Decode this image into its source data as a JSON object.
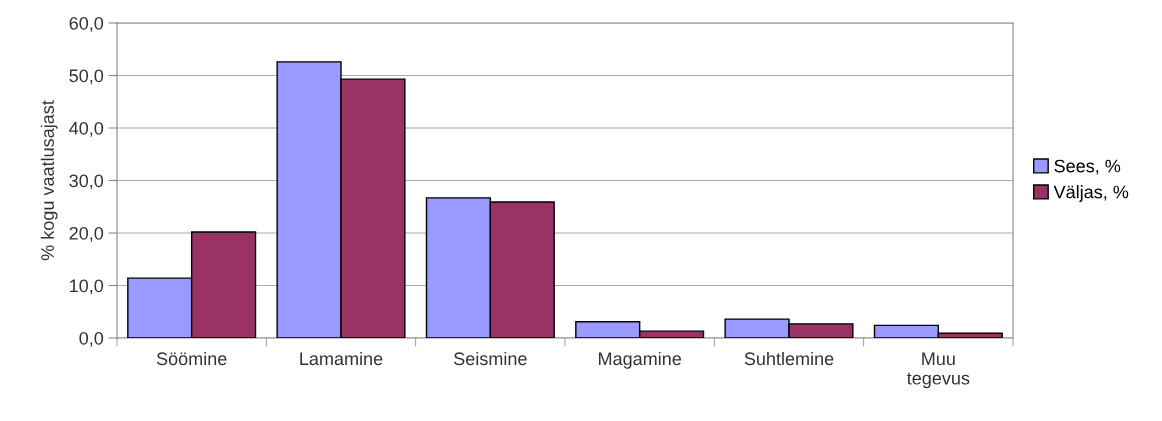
{
  "chart_data": {
    "type": "bar",
    "ylabel": "% kogu vaatlusajast",
    "categories": [
      "Söömine",
      "Lamamine",
      "Seismine",
      "Magamine",
      "Suhtlemine",
      "Muu\ntegevus"
    ],
    "series": [
      {
        "name": "Sees, %",
        "color": "#9999ff",
        "values": [
          11.4,
          52.6,
          26.7,
          3.1,
          3.6,
          2.4
        ]
      },
      {
        "name": "Väljas, %",
        "color": "#993366",
        "values": [
          20.2,
          49.3,
          25.9,
          1.3,
          2.7,
          0.9
        ]
      }
    ],
    "ylim": [
      0,
      60
    ],
    "yticks": [
      {
        "value": 0,
        "label": "0,0"
      },
      {
        "value": 10,
        "label": "10,0"
      },
      {
        "value": 20,
        "label": "20,0"
      },
      {
        "value": 30,
        "label": "30,0"
      },
      {
        "value": 40,
        "label": "40,0"
      },
      {
        "value": 50,
        "label": "50,0"
      },
      {
        "value": 60,
        "label": "60,0"
      }
    ],
    "grid": "y",
    "legend": "right"
  }
}
